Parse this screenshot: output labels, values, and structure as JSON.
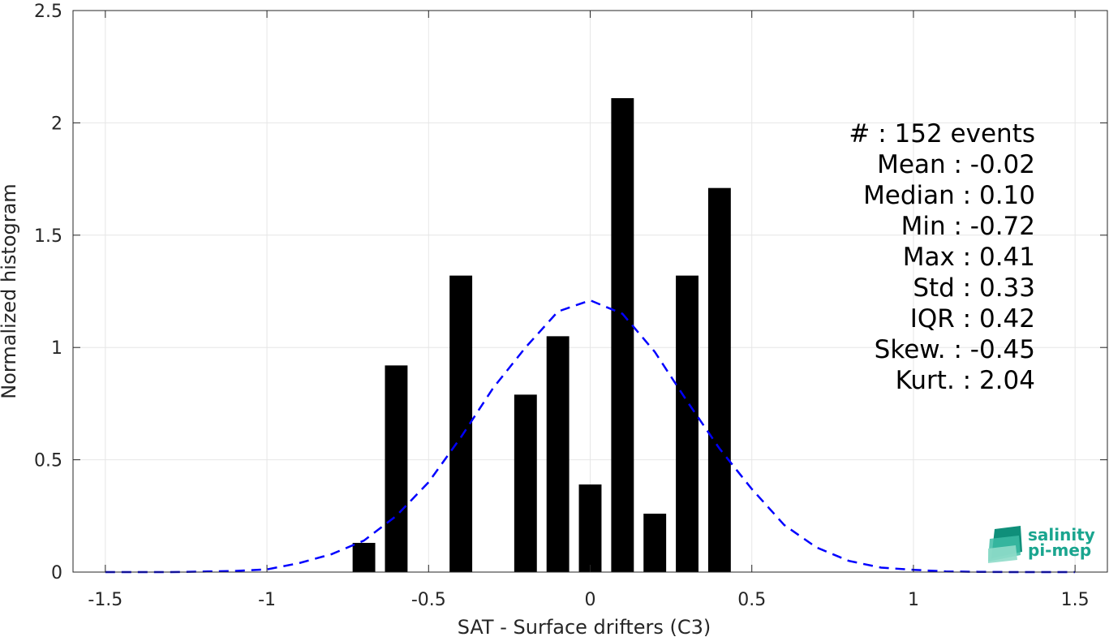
{
  "chart_data": {
    "type": "bar",
    "xlabel": "SAT - Surface drifters (C3)",
    "ylabel": "Normalized histogram",
    "xlim": [
      -1.6,
      1.6
    ],
    "ylim": [
      0,
      2.5
    ],
    "xticks": [
      -1.5,
      -1,
      -0.5,
      0,
      0.5,
      1,
      1.5
    ],
    "xtick_labels": [
      "-1.5",
      "-1",
      "-0.5",
      "0",
      "0.5",
      "1",
      "1.5"
    ],
    "yticks": [
      0,
      0.5,
      1,
      1.5,
      2,
      2.5
    ],
    "ytick_labels": [
      "0",
      "0.5",
      "1",
      "1.5",
      "2",
      "2.5"
    ],
    "grid": true,
    "bar_color": "#000000",
    "bars": [
      {
        "x": -0.7,
        "value": 0.13
      },
      {
        "x": -0.6,
        "value": 0.92
      },
      {
        "x": -0.4,
        "value": 1.32
      },
      {
        "x": -0.2,
        "value": 0.79
      },
      {
        "x": -0.1,
        "value": 1.05
      },
      {
        "x": 0.0,
        "value": 0.39
      },
      {
        "x": 0.1,
        "value": 2.11
      },
      {
        "x": 0.2,
        "value": 0.26
      },
      {
        "x": 0.3,
        "value": 1.32
      },
      {
        "x": 0.4,
        "value": 1.71
      }
    ],
    "bar_width": 0.07,
    "curve": {
      "style": "dashed",
      "color": "#0000ff",
      "x": [
        -1.5,
        -1.4,
        -1.3,
        -1.2,
        -1.1,
        -1.0,
        -0.9,
        -0.8,
        -0.7,
        -0.6,
        -0.5,
        -0.4,
        -0.3,
        -0.2,
        -0.1,
        0.0,
        0.1,
        0.2,
        0.3,
        0.4,
        0.5,
        0.6,
        0.7,
        0.8,
        0.9,
        1.0,
        1.1,
        1.2,
        1.3,
        1.4,
        1.5
      ],
      "y": [
        0.0,
        0.0,
        0.0,
        0.002,
        0.005,
        0.012,
        0.04,
        0.08,
        0.14,
        0.25,
        0.4,
        0.6,
        0.82,
        1.0,
        1.16,
        1.21,
        1.15,
        0.98,
        0.76,
        0.55,
        0.37,
        0.21,
        0.11,
        0.05,
        0.02,
        0.01,
        0.003,
        0.001,
        0.0,
        0.0,
        0.0
      ]
    },
    "stats": [
      "#  : 152 events",
      "Mean : -0.02",
      "Median : 0.10",
      "Min : -0.72",
      "Max : 0.41",
      "Std : 0.33",
      "IQR : 0.42",
      "Skew. : -0.45",
      "Kurt. : 2.04"
    ]
  },
  "logo": {
    "line1": "salinity",
    "line2": "pi-mep",
    "color": "#1aa58f"
  }
}
